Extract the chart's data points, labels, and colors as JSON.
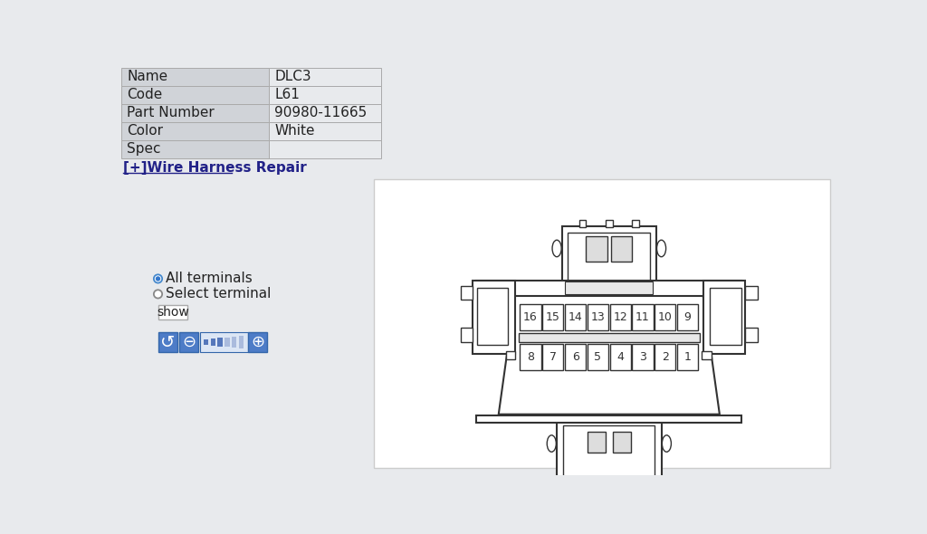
{
  "bg_color": "#e8eaed",
  "table_bg_left": "#d0d3d8",
  "table_bg_right": "#e8eaed",
  "table_rows": [
    [
      "Name",
      "DLC3"
    ],
    [
      "Code",
      "L61"
    ],
    [
      "Part Number",
      "90980-11665"
    ],
    [
      "Color",
      "White"
    ],
    [
      "Spec",
      ""
    ]
  ],
  "link_text": "[+]Wire Harness Repair",
  "radio_all": "All terminals",
  "radio_select": "Select terminal",
  "show_btn": "show",
  "connector_line_color": "#333333",
  "pin_row1": [
    16,
    15,
    14,
    13,
    12,
    11,
    10,
    9
  ],
  "pin_row2": [
    8,
    7,
    6,
    5,
    4,
    3,
    2,
    1
  ],
  "label_fontsize": 11,
  "pin_fontsize": 9
}
